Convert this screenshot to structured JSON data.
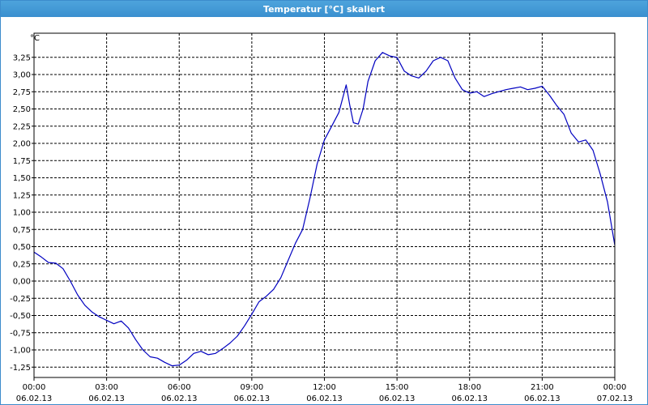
{
  "window": {
    "title": "Temperatur [°C] skaliert"
  },
  "colors": {
    "line": "#0000c0",
    "grid": "#000000",
    "title_bar": "#3a8fcf"
  },
  "chart_data": {
    "type": "line",
    "title": "Temperatur [°C] skaliert",
    "ylabel": "°C",
    "xlabel": "",
    "ylim": [
      -1.4,
      3.6
    ],
    "xlim": [
      0,
      24
    ],
    "grid": true,
    "y_ticks": [
      "3,25",
      "3,00",
      "2,75",
      "2,50",
      "2,25",
      "2,00",
      "1,75",
      "1,50",
      "1,25",
      "1,00",
      "0,75",
      "0,50",
      "0,25",
      "0,00",
      "-0,25",
      "-0,50",
      "-0,75",
      "-1,00",
      "-1,25"
    ],
    "y_tick_values": [
      3.25,
      3.0,
      2.75,
      2.5,
      2.25,
      2.0,
      1.75,
      1.5,
      1.25,
      1.0,
      0.75,
      0.5,
      0.25,
      0.0,
      -0.25,
      -0.5,
      -0.75,
      -1.0,
      -1.25
    ],
    "x_ticks": [
      {
        "time": "00:00",
        "date": "06.02.13"
      },
      {
        "time": "03:00",
        "date": "06.02.13"
      },
      {
        "time": "06:00",
        "date": "06.02.13"
      },
      {
        "time": "09:00",
        "date": "06.02.13"
      },
      {
        "time": "12:00",
        "date": "06.02.13"
      },
      {
        "time": "15:00",
        "date": "06.02.13"
      },
      {
        "time": "18:00",
        "date": "06.02.13"
      },
      {
        "time": "21:00",
        "date": "06.02.13"
      },
      {
        "time": "00:00",
        "date": "07.02.13"
      }
    ],
    "x_tick_values": [
      0,
      3,
      6,
      9,
      12,
      15,
      18,
      21,
      24
    ],
    "series": [
      {
        "x": [
          0,
          0.3,
          0.6,
          0.9,
          1.2,
          1.5,
          1.8,
          2.1,
          2.4,
          2.7,
          3.0,
          3.3,
          3.6,
          3.9,
          4.2,
          4.5,
          4.8,
          5.1,
          5.4,
          5.7,
          6.0,
          6.3,
          6.6,
          6.9,
          7.2,
          7.5,
          7.8,
          8.1,
          8.4,
          8.7,
          9.0,
          9.3,
          9.6,
          9.9,
          10.2,
          10.5,
          10.8,
          11.1,
          11.4,
          11.7,
          12.0,
          12.3,
          12.6,
          12.9,
          13.05,
          13.2,
          13.4,
          13.6,
          13.8,
          14.1,
          14.4,
          14.7,
          15.0,
          15.3,
          15.6,
          15.9,
          16.2,
          16.5,
          16.8,
          17.1,
          17.4,
          17.7,
          18.0,
          18.3,
          18.6,
          18.9,
          19.2,
          19.5,
          19.8,
          20.1,
          20.4,
          20.7,
          21.0,
          21.3,
          21.6,
          21.9,
          22.2,
          22.5,
          22.8,
          23.1,
          23.4,
          23.7,
          24.0
        ],
        "values": [
          0.42,
          0.35,
          0.27,
          0.26,
          0.18,
          0.0,
          -0.2,
          -0.35,
          -0.45,
          -0.52,
          -0.57,
          -0.62,
          -0.58,
          -0.68,
          -0.85,
          -1.0,
          -1.1,
          -1.12,
          -1.18,
          -1.23,
          -1.22,
          -1.15,
          -1.05,
          -1.02,
          -1.07,
          -1.05,
          -0.98,
          -0.9,
          -0.8,
          -0.65,
          -0.48,
          -0.3,
          -0.22,
          -0.12,
          0.05,
          0.3,
          0.55,
          0.75,
          1.2,
          1.7,
          2.05,
          2.25,
          2.45,
          2.85,
          2.55,
          2.3,
          2.28,
          2.5,
          2.9,
          3.2,
          3.32,
          3.27,
          3.25,
          3.05,
          2.98,
          2.95,
          3.05,
          3.2,
          3.25,
          3.2,
          2.95,
          2.78,
          2.73,
          2.75,
          2.68,
          2.72,
          2.75,
          2.78,
          2.8,
          2.82,
          2.78,
          2.8,
          2.83,
          2.7,
          2.55,
          2.42,
          2.15,
          2.02,
          2.05,
          1.9,
          1.55,
          1.15,
          0.52
        ]
      }
    ]
  }
}
